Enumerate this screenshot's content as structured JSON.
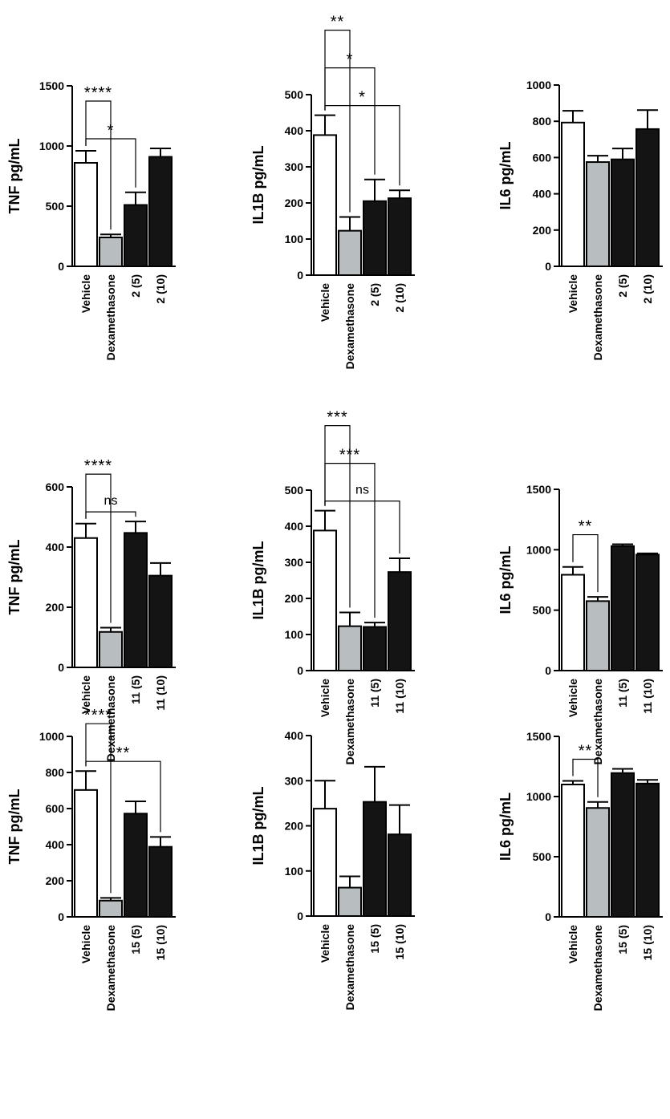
{
  "colors": {
    "vehicle": "#ffffff",
    "dexamethasone": "#b8bec0",
    "compound": "#141414",
    "axis": "#000000"
  },
  "chart_data": [
    {
      "type": "bar",
      "ylabel": "TNF pg/mL",
      "ylim": [
        0,
        1500
      ],
      "yticks": [
        0,
        500,
        1000,
        1500
      ],
      "categories": [
        "Vehicle",
        "Dexamethasone",
        "2 (5)",
        "2 (10)"
      ],
      "values": [
        860,
        240,
        510,
        910
      ],
      "errors": [
        100,
        25,
        105,
        70
      ],
      "annotations": [
        {
          "from": 0,
          "to": 1,
          "label": "****"
        },
        {
          "from": 0,
          "to": 2,
          "label": "*"
        }
      ]
    },
    {
      "type": "bar",
      "ylabel": "IL1B pg/mL",
      "ylim": [
        0,
        500
      ],
      "yticks": [
        0,
        100,
        200,
        300,
        400,
        500
      ],
      "categories": [
        "Vehicle",
        "Dexamethasone",
        "2 (5)",
        "2 (10)"
      ],
      "values": [
        388,
        123,
        205,
        213
      ],
      "errors": [
        55,
        38,
        60,
        22
      ],
      "annotations": [
        {
          "from": 0,
          "to": 1,
          "label": "**"
        },
        {
          "from": 0,
          "to": 2,
          "label": "*"
        },
        {
          "from": 0,
          "to": 3,
          "label": "*"
        }
      ]
    },
    {
      "type": "bar",
      "ylabel": "IL6 pg/mL",
      "ylim": [
        0,
        1000
      ],
      "yticks": [
        0,
        200,
        400,
        600,
        800,
        1000
      ],
      "categories": [
        "Vehicle",
        "Dexamethasone",
        "2 (5)",
        "2 (10)"
      ],
      "values": [
        793,
        575,
        590,
        757
      ],
      "errors": [
        65,
        35,
        60,
        105
      ],
      "annotations": []
    },
    {
      "type": "bar",
      "ylabel": "TNF pg/mL",
      "ylim": [
        0,
        600
      ],
      "yticks": [
        0,
        200,
        400,
        600
      ],
      "categories": [
        "Vehicle",
        "Dexamethasone",
        "11 (5)",
        "11 (10)"
      ],
      "values": [
        430,
        118,
        447,
        305
      ],
      "errors": [
        48,
        14,
        38,
        42
      ],
      "annotations": [
        {
          "from": 0,
          "to": 1,
          "label": "****"
        },
        {
          "from": 0,
          "to": 2,
          "label": "ns"
        }
      ]
    },
    {
      "type": "bar",
      "ylabel": "IL1B pg/mL",
      "ylim": [
        0,
        500
      ],
      "yticks": [
        0,
        100,
        200,
        300,
        400,
        500
      ],
      "categories": [
        "Vehicle",
        "Dexamethasone",
        "11 (5)",
        "11 (10)"
      ],
      "values": [
        388,
        123,
        121,
        273
      ],
      "errors": [
        55,
        38,
        12,
        38
      ],
      "annotations": [
        {
          "from": 0,
          "to": 1,
          "label": "***"
        },
        {
          "from": 0,
          "to": 2,
          "label": "***"
        },
        {
          "from": 0,
          "to": 3,
          "label": "ns"
        }
      ]
    },
    {
      "type": "bar",
      "ylabel": "IL6 pg/mL",
      "ylim": [
        0,
        1500
      ],
      "yticks": [
        0,
        500,
        1000,
        1500
      ],
      "categories": [
        "Vehicle",
        "Dexamethasone",
        "11 (5)",
        "11 (10)"
      ],
      "values": [
        793,
        575,
        1030,
        960
      ],
      "errors": [
        65,
        35,
        15,
        10
      ],
      "annotations": [
        {
          "from": 0,
          "to": 1,
          "label": "**"
        }
      ]
    },
    {
      "type": "bar",
      "ylabel": "TNF pg/mL",
      "ylim": [
        0,
        1000
      ],
      "yticks": [
        0,
        200,
        400,
        600,
        800,
        1000
      ],
      "categories": [
        "Vehicle",
        "Dexamethasone",
        "15 (5)",
        "15 (10)"
      ],
      "values": [
        703,
        90,
        572,
        388
      ],
      "errors": [
        105,
        15,
        68,
        55
      ],
      "annotations": [
        {
          "from": 0,
          "to": 1,
          "label": "****"
        },
        {
          "from": 0,
          "to": 3,
          "label": "**"
        }
      ]
    },
    {
      "type": "bar",
      "ylabel": "IL1B pg/mL",
      "ylim": [
        0,
        400
      ],
      "yticks": [
        0,
        100,
        200,
        300,
        400
      ],
      "categories": [
        "Vehicle",
        "Dexamethasone",
        "15 (5)",
        "15 (10)"
      ],
      "values": [
        238,
        63,
        253,
        181
      ],
      "errors": [
        62,
        25,
        78,
        65
      ],
      "annotations": []
    },
    {
      "type": "bar",
      "ylabel": "IL6 pg/mL",
      "ylim": [
        0,
        1500
      ],
      "yticks": [
        0,
        500,
        1000,
        1500
      ],
      "categories": [
        "Vehicle",
        "Dexamethasone",
        "15 (5)",
        "15 (10)"
      ],
      "values": [
        1100,
        905,
        1195,
        1108
      ],
      "errors": [
        30,
        50,
        35,
        30
      ],
      "annotations": [
        {
          "from": 0,
          "to": 1,
          "label": "**"
        }
      ]
    }
  ]
}
